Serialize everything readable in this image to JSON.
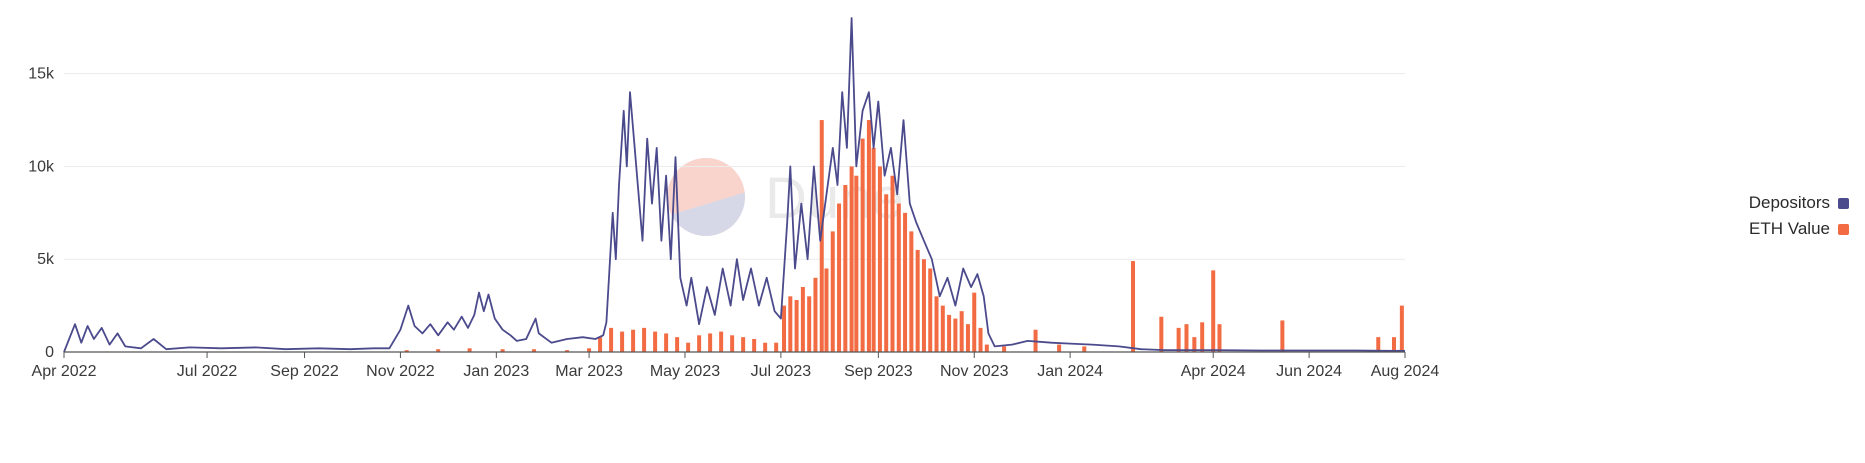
{
  "chart_data": {
    "type": "bar",
    "title": "",
    "xlabel": "",
    "ylabel": "",
    "ylim": [
      0,
      18000
    ],
    "xlim": [
      "2022-04-01",
      "2024-08-01"
    ],
    "grid": true,
    "legend_position": "right",
    "y_ticks": [
      {
        "value": 0,
        "label": "0"
      },
      {
        "value": 5000,
        "label": "5k"
      },
      {
        "value": 10000,
        "label": "10k"
      },
      {
        "value": 15000,
        "label": "15k"
      }
    ],
    "x_ticks": [
      {
        "value": "2022-04-01",
        "label": "Apr 2022"
      },
      {
        "value": "2022-07-01",
        "label": "Jul 2022"
      },
      {
        "value": "2022-09-01",
        "label": "Sep 2022"
      },
      {
        "value": "2022-11-01",
        "label": "Nov 2022"
      },
      {
        "value": "2023-01-01",
        "label": "Jan 2023"
      },
      {
        "value": "2023-03-01",
        "label": "Mar 2023"
      },
      {
        "value": "2023-05-01",
        "label": "May 2023"
      },
      {
        "value": "2023-07-01",
        "label": "Jul 2023"
      },
      {
        "value": "2023-09-01",
        "label": "Sep 2023"
      },
      {
        "value": "2023-11-01",
        "label": "Nov 2023"
      },
      {
        "value": "2024-01-01",
        "label": "Jan 2024"
      },
      {
        "value": "2024-04-01",
        "label": "Apr 2024"
      },
      {
        "value": "2024-06-01",
        "label": "Jun 2024"
      },
      {
        "value": "2024-08-01",
        "label": "Aug 2024"
      }
    ],
    "series": [
      {
        "name": "Depositors",
        "type": "line",
        "color": "#4b4a8c",
        "points": [
          [
            "2022-04-01",
            0
          ],
          [
            "2022-04-08",
            1500
          ],
          [
            "2022-04-12",
            500
          ],
          [
            "2022-04-16",
            1400
          ],
          [
            "2022-04-20",
            700
          ],
          [
            "2022-04-25",
            1300
          ],
          [
            "2022-04-30",
            400
          ],
          [
            "2022-05-05",
            1000
          ],
          [
            "2022-05-10",
            300
          ],
          [
            "2022-05-20",
            200
          ],
          [
            "2022-05-28",
            700
          ],
          [
            "2022-06-05",
            150
          ],
          [
            "2022-06-20",
            250
          ],
          [
            "2022-07-10",
            200
          ],
          [
            "2022-08-01",
            250
          ],
          [
            "2022-08-20",
            150
          ],
          [
            "2022-09-10",
            200
          ],
          [
            "2022-09-30",
            150
          ],
          [
            "2022-10-15",
            200
          ],
          [
            "2022-10-25",
            200
          ],
          [
            "2022-11-01",
            1200
          ],
          [
            "2022-11-06",
            2500
          ],
          [
            "2022-11-10",
            1400
          ],
          [
            "2022-11-15",
            1000
          ],
          [
            "2022-11-20",
            1500
          ],
          [
            "2022-11-25",
            900
          ],
          [
            "2022-12-01",
            1600
          ],
          [
            "2022-12-05",
            1200
          ],
          [
            "2022-12-10",
            1900
          ],
          [
            "2022-12-14",
            1300
          ],
          [
            "2022-12-18",
            2000
          ],
          [
            "2022-12-21",
            3200
          ],
          [
            "2022-12-24",
            2200
          ],
          [
            "2022-12-27",
            3100
          ],
          [
            "2022-12-31",
            1800
          ],
          [
            "2023-01-05",
            1200
          ],
          [
            "2023-01-10",
            900
          ],
          [
            "2023-01-14",
            600
          ],
          [
            "2023-01-20",
            700
          ],
          [
            "2023-01-26",
            1800
          ],
          [
            "2023-01-28",
            1000
          ],
          [
            "2023-02-05",
            500
          ],
          [
            "2023-02-15",
            700
          ],
          [
            "2023-02-25",
            800
          ],
          [
            "2023-03-05",
            700
          ],
          [
            "2023-03-10",
            900
          ],
          [
            "2023-03-12",
            1600
          ],
          [
            "2023-03-14",
            4500
          ],
          [
            "2023-03-16",
            7500
          ],
          [
            "2023-03-18",
            5000
          ],
          [
            "2023-03-20",
            9000
          ],
          [
            "2023-03-23",
            13000
          ],
          [
            "2023-03-25",
            10000
          ],
          [
            "2023-03-27",
            14000
          ],
          [
            "2023-03-30",
            11000
          ],
          [
            "2023-04-01",
            9000
          ],
          [
            "2023-04-04",
            6000
          ],
          [
            "2023-04-07",
            11500
          ],
          [
            "2023-04-10",
            8000
          ],
          [
            "2023-04-13",
            11000
          ],
          [
            "2023-04-16",
            6000
          ],
          [
            "2023-04-19",
            9500
          ],
          [
            "2023-04-22",
            5000
          ],
          [
            "2023-04-25",
            10500
          ],
          [
            "2023-04-28",
            4000
          ],
          [
            "2023-05-02",
            2500
          ],
          [
            "2023-05-05",
            4000
          ],
          [
            "2023-05-10",
            1500
          ],
          [
            "2023-05-15",
            3500
          ],
          [
            "2023-05-20",
            2000
          ],
          [
            "2023-05-25",
            4500
          ],
          [
            "2023-05-30",
            2500
          ],
          [
            "2023-06-03",
            5000
          ],
          [
            "2023-06-07",
            2800
          ],
          [
            "2023-06-12",
            4500
          ],
          [
            "2023-06-17",
            2500
          ],
          [
            "2023-06-22",
            4000
          ],
          [
            "2023-06-27",
            2200
          ],
          [
            "2023-07-01",
            1800
          ],
          [
            "2023-07-05",
            7000
          ],
          [
            "2023-07-07",
            10000
          ],
          [
            "2023-07-10",
            4500
          ],
          [
            "2023-07-14",
            8000
          ],
          [
            "2023-07-18",
            5000
          ],
          [
            "2023-07-22",
            10000
          ],
          [
            "2023-07-26",
            6000
          ],
          [
            "2023-07-30",
            8500
          ],
          [
            "2023-08-03",
            11000
          ],
          [
            "2023-08-06",
            9000
          ],
          [
            "2023-08-09",
            14000
          ],
          [
            "2023-08-12",
            11000
          ],
          [
            "2023-08-15",
            18000
          ],
          [
            "2023-08-18",
            10000
          ],
          [
            "2023-08-22",
            13000
          ],
          [
            "2023-08-26",
            14000
          ],
          [
            "2023-08-29",
            11000
          ],
          [
            "2023-09-01",
            13500
          ],
          [
            "2023-09-05",
            9500
          ],
          [
            "2023-09-09",
            11000
          ],
          [
            "2023-09-13",
            8500
          ],
          [
            "2023-09-17",
            12500
          ],
          [
            "2023-09-21",
            8000
          ],
          [
            "2023-09-25",
            7000
          ],
          [
            "2023-09-30",
            6000
          ],
          [
            "2023-10-05",
            5000
          ],
          [
            "2023-10-10",
            3000
          ],
          [
            "2023-10-15",
            4000
          ],
          [
            "2023-10-20",
            2500
          ],
          [
            "2023-10-25",
            4500
          ],
          [
            "2023-10-30",
            3500
          ],
          [
            "2023-11-03",
            4200
          ],
          [
            "2023-11-07",
            3000
          ],
          [
            "2023-11-10",
            1000
          ],
          [
            "2023-11-14",
            300
          ],
          [
            "2023-11-25",
            400
          ],
          [
            "2023-12-05",
            600
          ],
          [
            "2023-12-20",
            500
          ],
          [
            "2024-01-01",
            450
          ],
          [
            "2024-01-15",
            400
          ],
          [
            "2024-02-01",
            300
          ],
          [
            "2024-02-15",
            150
          ],
          [
            "2024-03-01",
            100
          ],
          [
            "2024-04-01",
            100
          ],
          [
            "2024-05-01",
            80
          ],
          [
            "2024-06-01",
            80
          ],
          [
            "2024-07-01",
            80
          ],
          [
            "2024-08-01",
            60
          ]
        ]
      },
      {
        "name": "ETH Value",
        "type": "bar",
        "color": "#f26b43",
        "points": [
          [
            "2022-11-05",
            100
          ],
          [
            "2022-11-25",
            150
          ],
          [
            "2022-12-15",
            200
          ],
          [
            "2023-01-05",
            150
          ],
          [
            "2023-01-25",
            150
          ],
          [
            "2023-02-15",
            100
          ],
          [
            "2023-03-01",
            200
          ],
          [
            "2023-03-08",
            800
          ],
          [
            "2023-03-15",
            1300
          ],
          [
            "2023-03-22",
            1100
          ],
          [
            "2023-03-29",
            1200
          ],
          [
            "2023-04-05",
            1300
          ],
          [
            "2023-04-12",
            1100
          ],
          [
            "2023-04-19",
            1000
          ],
          [
            "2023-04-26",
            800
          ],
          [
            "2023-05-03",
            500
          ],
          [
            "2023-05-10",
            900
          ],
          [
            "2023-05-17",
            1000
          ],
          [
            "2023-05-24",
            1100
          ],
          [
            "2023-05-31",
            900
          ],
          [
            "2023-06-07",
            800
          ],
          [
            "2023-06-14",
            700
          ],
          [
            "2023-06-21",
            500
          ],
          [
            "2023-06-28",
            500
          ],
          [
            "2023-07-03",
            2500
          ],
          [
            "2023-07-07",
            3000
          ],
          [
            "2023-07-11",
            2800
          ],
          [
            "2023-07-15",
            3500
          ],
          [
            "2023-07-19",
            3000
          ],
          [
            "2023-07-23",
            4000
          ],
          [
            "2023-07-27",
            12500
          ],
          [
            "2023-07-30",
            4500
          ],
          [
            "2023-08-03",
            6500
          ],
          [
            "2023-08-07",
            8000
          ],
          [
            "2023-08-11",
            9000
          ],
          [
            "2023-08-15",
            10000
          ],
          [
            "2023-08-18",
            9500
          ],
          [
            "2023-08-22",
            11500
          ],
          [
            "2023-08-26",
            12500
          ],
          [
            "2023-08-29",
            11000
          ],
          [
            "2023-09-02",
            10000
          ],
          [
            "2023-09-06",
            8500
          ],
          [
            "2023-09-10",
            9500
          ],
          [
            "2023-09-14",
            8000
          ],
          [
            "2023-09-18",
            7500
          ],
          [
            "2023-09-22",
            6500
          ],
          [
            "2023-09-26",
            5500
          ],
          [
            "2023-09-30",
            5000
          ],
          [
            "2023-10-04",
            4500
          ],
          [
            "2023-10-08",
            3000
          ],
          [
            "2023-10-12",
            2500
          ],
          [
            "2023-10-16",
            2000
          ],
          [
            "2023-10-20",
            1800
          ],
          [
            "2023-10-24",
            2200
          ],
          [
            "2023-10-28",
            1500
          ],
          [
            "2023-11-01",
            3200
          ],
          [
            "2023-11-05",
            1300
          ],
          [
            "2023-11-09",
            400
          ],
          [
            "2023-11-20",
            300
          ],
          [
            "2023-12-10",
            1200
          ],
          [
            "2023-12-25",
            400
          ],
          [
            "2024-01-10",
            300
          ],
          [
            "2024-02-10",
            4900
          ],
          [
            "2024-02-28",
            1900
          ],
          [
            "2024-03-10",
            1300
          ],
          [
            "2024-03-15",
            1500
          ],
          [
            "2024-03-20",
            800
          ],
          [
            "2024-03-25",
            1600
          ],
          [
            "2024-04-01",
            4400
          ],
          [
            "2024-04-05",
            1500
          ],
          [
            "2024-05-15",
            1700
          ],
          [
            "2024-07-15",
            800
          ],
          [
            "2024-07-25",
            800
          ],
          [
            "2024-07-30",
            2500
          ]
        ]
      }
    ]
  },
  "legend": {
    "items": [
      {
        "label": "Depositors",
        "color": "#4b4a8c"
      },
      {
        "label": "ETH Value",
        "color": "#f26b43"
      }
    ]
  },
  "watermark": {
    "text": "Dune",
    "colors": {
      "top": "#f6c6bd",
      "bottom": "#c9cce0"
    }
  }
}
